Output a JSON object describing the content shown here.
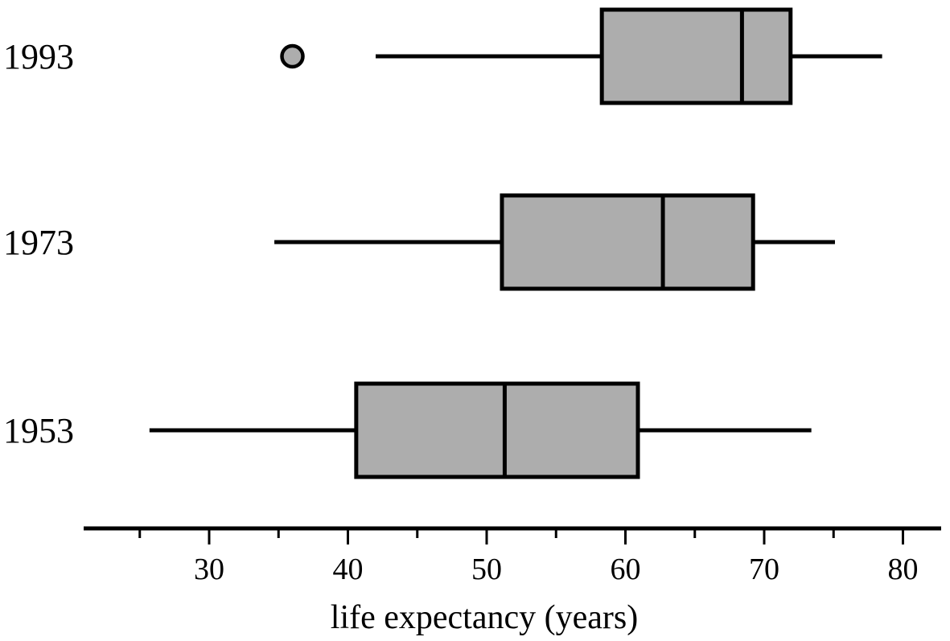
{
  "chart_data": {
    "type": "boxplot",
    "orientation": "horizontal",
    "xlabel": "life expectancy (years)",
    "xlim": [
      21,
      83
    ],
    "major_ticks": [
      30,
      40,
      50,
      60,
      70,
      80
    ],
    "minor_ticks": [
      25,
      35,
      45,
      55,
      65,
      75
    ],
    "tick_labels": [
      "30",
      "40",
      "50",
      "60",
      "70",
      "80"
    ],
    "box_color": "#adadad",
    "series": [
      {
        "name": "1993",
        "whisker_low": 42,
        "q1": 58.3,
        "median": 68.4,
        "q3": 71.9,
        "whisker_high": 78.5,
        "outliers": [
          36
        ]
      },
      {
        "name": "1973",
        "whisker_low": 34.7,
        "q1": 51.1,
        "median": 62.7,
        "q3": 69.2,
        "whisker_high": 75.1,
        "outliers": []
      },
      {
        "name": "1953",
        "whisker_low": 25.7,
        "q1": 40.6,
        "median": 51.3,
        "q3": 60.9,
        "whisker_high": 73.4,
        "outliers": []
      }
    ]
  }
}
